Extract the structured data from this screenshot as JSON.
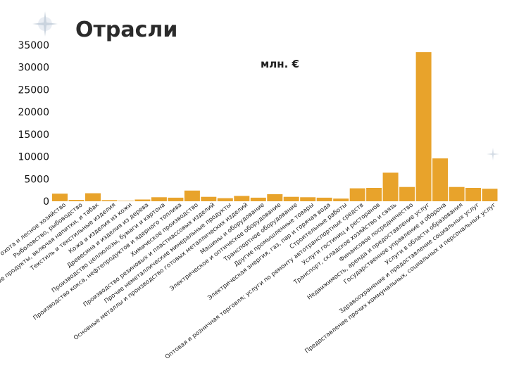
{
  "chart_data": {
    "type": "bar",
    "title": "Отрасли",
    "unit_label": "млн. €",
    "ylim": [
      0,
      35000
    ],
    "yticks": [
      0,
      5000,
      10000,
      15000,
      20000,
      25000,
      30000,
      35000
    ],
    "grid": false,
    "bar_color": "#e8a32b",
    "categories": [
      "Сельское хозяйство, охота и лесное хозяйство",
      "Рыболовство, рыбоводство",
      "Пищевые продукты, включая напитки, и табак",
      "Текстиль и текстильные изделия",
      "Кожа и изделия из кожи",
      "Древесина и изделия из дерева",
      "Производство целлюлозы, бумаги и картона",
      "Производство кокса, нефтепродуктов и ядерного топлива",
      "Химическое производство",
      "Производство резиновых и пластмассовых изделий",
      "Прочие неметаллические минеральные продукты",
      "Основные металлы и производство готовых металлических изделий",
      "Машины и оборудование",
      "Электрическое и оптическое оборудование",
      "Транспортное оборудование",
      "Другие промышленные товары",
      "Электрическая энергия, газ, пар и горячая вода",
      "Строительные работы",
      "Оптовая и розничная торговля; услуги по ремонту автотранспортных средств",
      "Услуги гостиниц и ресторанов",
      "Транспорт, складское хозяйство и связь",
      "Финансовое посредничество",
      "Недвижимость, аренда и предоставление услуг",
      "Государственное управление и оборона",
      "Услуги в области образования",
      "Здравоохранение и предоставление социальных услуг",
      "Предоставление прочих коммунальных, социальных и персональных услуг"
    ],
    "values": [
      1700,
      300,
      1800,
      250,
      100,
      400,
      900,
      800,
      2400,
      1000,
      700,
      1200,
      800,
      1600,
      1000,
      900,
      800,
      600,
      2900,
      3000,
      6400,
      3200,
      33400,
      9600,
      3200,
      3000,
      2800
    ]
  }
}
